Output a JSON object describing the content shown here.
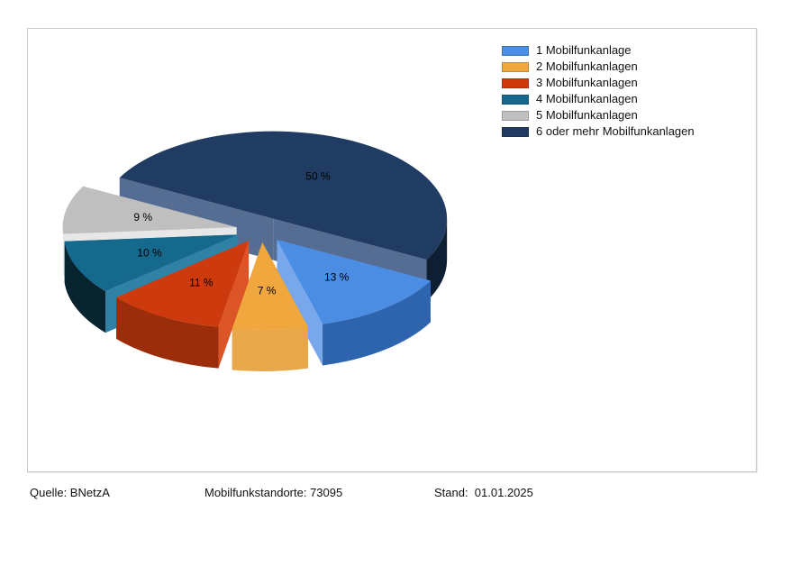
{
  "chart_data": {
    "type": "pie",
    "style": "3d-exploded",
    "title": "",
    "unit": "%",
    "legend_position": "top-right",
    "slices": [
      {
        "label": "1 Mobilfunkanlage",
        "value": 13,
        "display": "13 %",
        "color": "#4A8DE2",
        "side": "#78A7EC",
        "rim": "#2E63AE"
      },
      {
        "label": "2 Mobilfunkanlagen",
        "value": 7,
        "display": "7 %",
        "color": "#EFA73E",
        "side": "#D1901F",
        "rim": "#E8A748"
      },
      {
        "label": "3 Mobilfunkanlagen",
        "value": 11,
        "display": "11 %",
        "color": "#CC3A0D",
        "side": "#DB5527",
        "rim": "#9C2D0A"
      },
      {
        "label": "4 Mobilfunkanlagen",
        "value": 10,
        "display": "10 %",
        "color": "#15698D",
        "side": "#2F81A6",
        "rim": "#08242F"
      },
      {
        "label": "5 Mobilfunkanlagen",
        "value": 9,
        "display": "9 %",
        "color": "#BFBFBF",
        "side": "#E7E7E7",
        "rim": "#F0F0F0"
      },
      {
        "label": "6 oder mehr Mobilfunkanlagen",
        "value": 50,
        "display": "50 %",
        "color": "#203C62",
        "side": "#556C93",
        "rim": "#0E1E33"
      }
    ]
  },
  "footer": {
    "source": "Quelle: BNetzA",
    "sites": "Mobilfunkstandorte: 73095",
    "date": "Stand:  01.01.2025"
  }
}
